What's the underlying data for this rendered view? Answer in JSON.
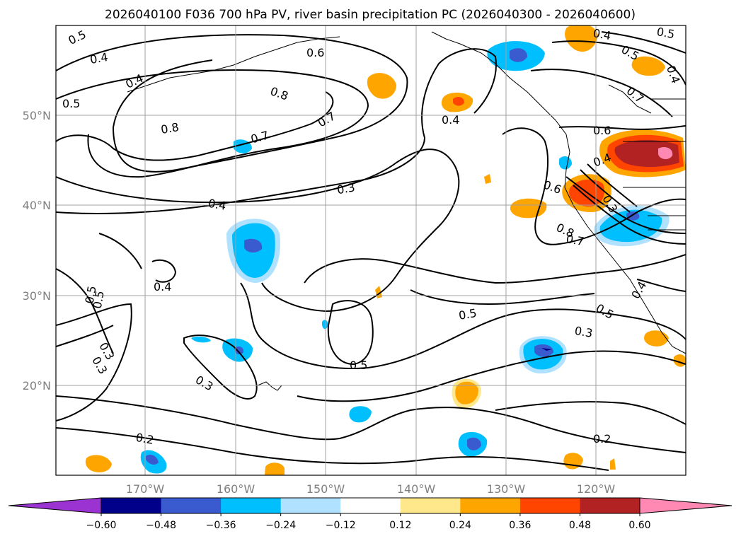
{
  "title": "2026040100 F036 700 hPa PV, river basin precipitation PC (2026040300 - 2026040600)",
  "map": {
    "lon_labels": [
      "170°W",
      "160°W",
      "150°W",
      "140°W",
      "130°W",
      "120°W"
    ],
    "lat_labels": [
      "50°N",
      "40°N",
      "30°N",
      "20°N"
    ]
  },
  "contour_labels": [
    {
      "text": "0.5"
    },
    {
      "text": "0.4"
    },
    {
      "text": "0.4"
    },
    {
      "text": "0.5"
    },
    {
      "text": "0.6"
    },
    {
      "text": "0.8"
    },
    {
      "text": "0.8"
    },
    {
      "text": "0.7"
    },
    {
      "text": "0.7"
    },
    {
      "text": "0.4"
    },
    {
      "text": "0.3"
    },
    {
      "text": "0.4"
    },
    {
      "text": "0.4"
    },
    {
      "text": "0.5"
    },
    {
      "text": "0.5"
    },
    {
      "text": "0.3"
    },
    {
      "text": "0.3"
    },
    {
      "text": "0.3"
    },
    {
      "text": "0.5"
    },
    {
      "text": "0.5"
    },
    {
      "text": "0.2"
    },
    {
      "text": "0.3"
    },
    {
      "text": "0.2"
    },
    {
      "text": "0.4"
    },
    {
      "text": "0.5"
    },
    {
      "text": "0.5"
    },
    {
      "text": "0.4"
    },
    {
      "text": "0.7"
    },
    {
      "text": "0.6"
    },
    {
      "text": "0.4"
    },
    {
      "text": "0.6"
    },
    {
      "text": "0.3"
    },
    {
      "text": "0.8"
    },
    {
      "text": "0.7"
    },
    {
      "text": "0.4"
    },
    {
      "text": "0.5"
    }
  ],
  "colorbar": {
    "ticks": [
      "−0.60",
      "−0.48",
      "−0.36",
      "−0.24",
      "−0.12",
      "0.12",
      "0.24",
      "0.36",
      "0.48",
      "0.60"
    ],
    "colors": [
      "#9a33d1",
      "#00008b",
      "#3a5bd0",
      "#00bfff",
      "#b0e2ff",
      "#ffffff",
      "#ffe88c",
      "#ffa500",
      "#ff4500",
      "#b22222",
      "#ff89b3",
      "#ff89b3"
    ]
  }
}
